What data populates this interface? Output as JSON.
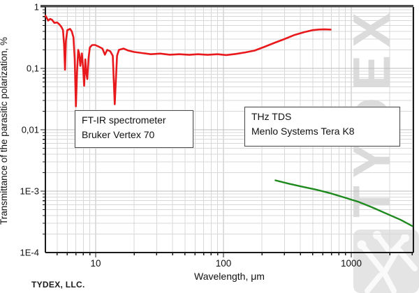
{
  "watermark": {
    "text": "TYDEX"
  },
  "footer": {
    "company": "TYDEX, LLC."
  },
  "annotations": [
    {
      "line1": "FT-IR spectrometer",
      "line2": "Bruker Vertex 70"
    },
    {
      "line1": "THz TDS",
      "line2": "Menlo Systems Tera K8"
    }
  ],
  "chart_data": {
    "type": "line",
    "title": "",
    "xlabel": "Wavelength, μm",
    "ylabel": "Transmittance of the parasitic polarization, %",
    "xscale": "log",
    "yscale": "log",
    "xlim": [
      4.04,
      3064
    ],
    "ylim": [
      0.0001,
      1
    ],
    "grid": true,
    "legend_position": "none (labeled by annotation boxes)",
    "x_ticks": [
      {
        "value": 10,
        "label": "10"
      },
      {
        "value": 100,
        "label": "100"
      },
      {
        "value": 1000,
        "label": "1000"
      }
    ],
    "y_ticks": [
      {
        "value": 1,
        "label": "1"
      },
      {
        "value": 0.1,
        "label": "0,1"
      },
      {
        "value": 0.01,
        "label": "0,01"
      },
      {
        "value": 0.001,
        "label": "1E-3"
      },
      {
        "value": 0.0001,
        "label": "1E-4"
      }
    ],
    "colors": {
      "red_series": "#e8191c",
      "green_series": "#1e8a1e",
      "grid_minor": "#d8d8d8",
      "grid_major": "#bdbdbd",
      "frame": "#1a1a1a",
      "frame_top": "#4d4d4d",
      "watermark": "#dbdbdb"
    },
    "series": [
      {
        "name": "FT-IR spectrometer Bruker Vertex 70",
        "color": "#e8191c",
        "points": [
          [
            4.05,
            0.72
          ],
          [
            4.15,
            0.66
          ],
          [
            4.25,
            0.6
          ],
          [
            4.4,
            0.64
          ],
          [
            4.55,
            0.62
          ],
          [
            4.75,
            0.55
          ],
          [
            5.0,
            0.56
          ],
          [
            5.2,
            0.52
          ],
          [
            5.4,
            0.47
          ],
          [
            5.55,
            0.42
          ],
          [
            5.65,
            0.25
          ],
          [
            5.75,
            0.095
          ],
          [
            5.85,
            0.28
          ],
          [
            6.0,
            0.42
          ],
          [
            6.15,
            0.43
          ],
          [
            6.3,
            0.44
          ],
          [
            6.5,
            0.4
          ],
          [
            6.7,
            0.32
          ],
          [
            6.85,
            0.14
          ],
          [
            7.0,
            0.024
          ],
          [
            7.15,
            0.09
          ],
          [
            7.3,
            0.2
          ],
          [
            7.45,
            0.17
          ],
          [
            7.58,
            0.11
          ],
          [
            7.8,
            0.175
          ],
          [
            8.0,
            0.09
          ],
          [
            8.12,
            0.052
          ],
          [
            8.3,
            0.14
          ],
          [
            8.45,
            0.085
          ],
          [
            8.6,
            0.067
          ],
          [
            8.8,
            0.15
          ],
          [
            9.0,
            0.22
          ],
          [
            9.4,
            0.24
          ],
          [
            9.9,
            0.24
          ],
          [
            10.6,
            0.225
          ],
          [
            11.3,
            0.21
          ],
          [
            11.8,
            0.167
          ],
          [
            12.3,
            0.2
          ],
          [
            13.0,
            0.19
          ],
          [
            13.6,
            0.16
          ],
          [
            14.1,
            0.026
          ],
          [
            14.7,
            0.16
          ],
          [
            15.2,
            0.2
          ],
          [
            16.5,
            0.21
          ],
          [
            18,
            0.195
          ],
          [
            20,
            0.185
          ],
          [
            23,
            0.178
          ],
          [
            27,
            0.17
          ],
          [
            32,
            0.174
          ],
          [
            38,
            0.167
          ],
          [
            45,
            0.17
          ],
          [
            54,
            0.166
          ],
          [
            63,
            0.17
          ],
          [
            75,
            0.166
          ],
          [
            90,
            0.17
          ],
          [
            105,
            0.165
          ],
          [
            125,
            0.172
          ],
          [
            148,
            0.182
          ],
          [
            175,
            0.195
          ],
          [
            210,
            0.225
          ],
          [
            250,
            0.26
          ],
          [
            300,
            0.3
          ],
          [
            360,
            0.35
          ],
          [
            430,
            0.39
          ],
          [
            500,
            0.42
          ],
          [
            560,
            0.43
          ],
          [
            620,
            0.432
          ],
          [
            690,
            0.428
          ]
        ]
      },
      {
        "name": "THz TDS Menlo Systems Tera K8",
        "color": "#1e8a1e",
        "points": [
          [
            255,
            0.0015
          ],
          [
            320,
            0.00133
          ],
          [
            415,
            0.00118
          ],
          [
            530,
            0.00106
          ],
          [
            680,
            0.00093
          ],
          [
            880,
            0.00079
          ],
          [
            1140,
            0.00067
          ],
          [
            1470,
            0.00054
          ],
          [
            1890,
            0.00043
          ],
          [
            2440,
            0.00034
          ],
          [
            3000,
            0.00027
          ]
        ]
      }
    ]
  }
}
